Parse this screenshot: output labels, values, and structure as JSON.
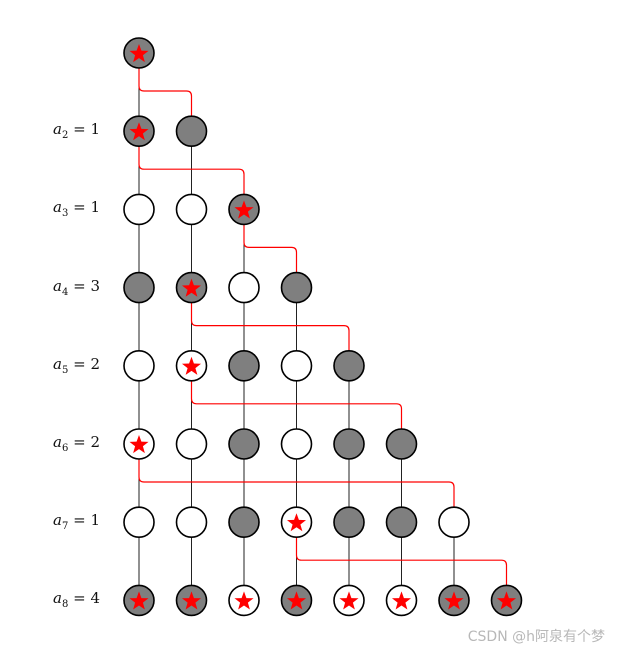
{
  "colors": {
    "filled": "#7f7f7f",
    "empty": "#ffffff",
    "star": "#ff0000",
    "path": "#ff0000",
    "edge": "#222222"
  },
  "rows": [
    {
      "label_var": "",
      "label_sub": "",
      "label_val": "",
      "nodes": [
        {
          "fill": "gray",
          "star": true
        }
      ]
    },
    {
      "label_var": "a",
      "label_sub": "2",
      "label_val": "1",
      "nodes": [
        {
          "fill": "gray",
          "star": true
        },
        {
          "fill": "gray",
          "star": false
        }
      ]
    },
    {
      "label_var": "a",
      "label_sub": "3",
      "label_val": "1",
      "nodes": [
        {
          "fill": "white",
          "star": false
        },
        {
          "fill": "white",
          "star": false
        },
        {
          "fill": "gray",
          "star": true
        }
      ]
    },
    {
      "label_var": "a",
      "label_sub": "4",
      "label_val": "3",
      "nodes": [
        {
          "fill": "gray",
          "star": false
        },
        {
          "fill": "gray",
          "star": true
        },
        {
          "fill": "white",
          "star": false
        },
        {
          "fill": "gray",
          "star": false
        }
      ]
    },
    {
      "label_var": "a",
      "label_sub": "5",
      "label_val": "2",
      "nodes": [
        {
          "fill": "white",
          "star": false
        },
        {
          "fill": "white",
          "star": true
        },
        {
          "fill": "gray",
          "star": false
        },
        {
          "fill": "white",
          "star": false
        },
        {
          "fill": "gray",
          "star": false
        }
      ]
    },
    {
      "label_var": "a",
      "label_sub": "6",
      "label_val": "2",
      "nodes": [
        {
          "fill": "white",
          "star": true
        },
        {
          "fill": "white",
          "star": false
        },
        {
          "fill": "gray",
          "star": false
        },
        {
          "fill": "white",
          "star": false
        },
        {
          "fill": "gray",
          "star": false
        },
        {
          "fill": "gray",
          "star": false
        }
      ]
    },
    {
      "label_var": "a",
      "label_sub": "7",
      "label_val": "1",
      "nodes": [
        {
          "fill": "white",
          "star": false
        },
        {
          "fill": "white",
          "star": false
        },
        {
          "fill": "gray",
          "star": false
        },
        {
          "fill": "white",
          "star": true
        },
        {
          "fill": "gray",
          "star": false
        },
        {
          "fill": "gray",
          "star": false
        },
        {
          "fill": "white",
          "star": false
        }
      ]
    },
    {
      "label_var": "a",
      "label_sub": "8",
      "label_val": "4",
      "nodes": [
        {
          "fill": "gray",
          "star": true
        },
        {
          "fill": "gray",
          "star": true
        },
        {
          "fill": "white",
          "star": true
        },
        {
          "fill": "gray",
          "star": true
        },
        {
          "fill": "white",
          "star": true
        },
        {
          "fill": "white",
          "star": true
        },
        {
          "fill": "gray",
          "star": true
        },
        {
          "fill": "gray",
          "star": true
        }
      ]
    }
  ],
  "red_links": [
    {
      "from_row": 1,
      "from_col": 1,
      "to_col": 2
    },
    {
      "from_row": 2,
      "from_col": 1,
      "to_col": 3
    },
    {
      "from_row": 3,
      "from_col": 3,
      "to_col": 4
    },
    {
      "from_row": 4,
      "from_col": 2,
      "to_col": 5
    },
    {
      "from_row": 5,
      "from_col": 2,
      "to_col": 6
    },
    {
      "from_row": 6,
      "from_col": 1,
      "to_col": 7
    },
    {
      "from_row": 7,
      "from_col": 4,
      "to_col": 8
    }
  ],
  "watermark": "CSDN @h阿泉有个梦"
}
